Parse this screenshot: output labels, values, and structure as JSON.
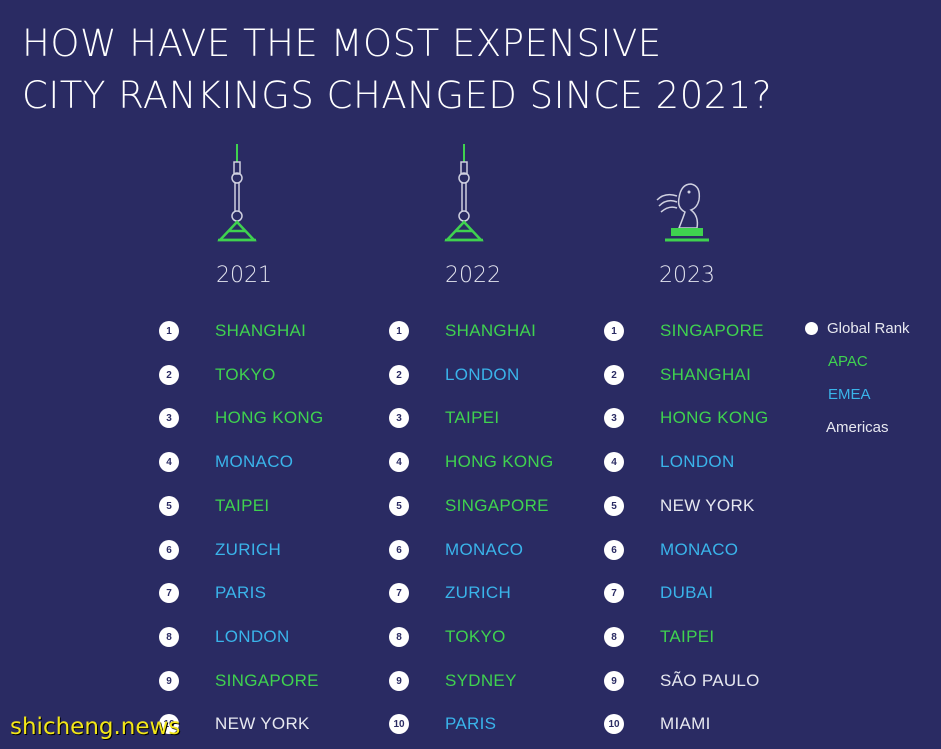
{
  "title": {
    "line1": "HOW HAVE THE MOST EXPENSIVE",
    "line2": "CITY RANKINGS CHANGED SINCE 2021?"
  },
  "columns": [
    {
      "year": "2021",
      "icon": "tower-icon",
      "cities": [
        {
          "rank": "1",
          "name": "SHANGHAI",
          "region": "apac"
        },
        {
          "rank": "2",
          "name": "TOKYO",
          "region": "apac"
        },
        {
          "rank": "3",
          "name": "HONG KONG",
          "region": "apac"
        },
        {
          "rank": "4",
          "name": "MONACO",
          "region": "emea"
        },
        {
          "rank": "5",
          "name": "TAIPEI",
          "region": "apac"
        },
        {
          "rank": "6",
          "name": "ZURICH",
          "region": "emea"
        },
        {
          "rank": "7",
          "name": "PARIS",
          "region": "emea"
        },
        {
          "rank": "8",
          "name": "LONDON",
          "region": "emea"
        },
        {
          "rank": "9",
          "name": "SINGAPORE",
          "region": "apac"
        },
        {
          "rank": "10",
          "name": "NEW YORK",
          "region": "americas"
        }
      ]
    },
    {
      "year": "2022",
      "icon": "tower-icon",
      "cities": [
        {
          "rank": "1",
          "name": "SHANGHAI",
          "region": "apac"
        },
        {
          "rank": "2",
          "name": "LONDON",
          "region": "emea"
        },
        {
          "rank": "3",
          "name": "TAIPEI",
          "region": "apac"
        },
        {
          "rank": "4",
          "name": "HONG KONG",
          "region": "apac"
        },
        {
          "rank": "5",
          "name": "SINGAPORE",
          "region": "apac"
        },
        {
          "rank": "6",
          "name": "MONACO",
          "region": "emea"
        },
        {
          "rank": "7",
          "name": "ZURICH",
          "region": "emea"
        },
        {
          "rank": "8",
          "name": "TOKYO",
          "region": "apac"
        },
        {
          "rank": "9",
          "name": "SYDNEY",
          "region": "apac"
        },
        {
          "rank": "10",
          "name": "PARIS",
          "region": "emea"
        }
      ]
    },
    {
      "year": "2023",
      "icon": "merlion-icon",
      "cities": [
        {
          "rank": "1",
          "name": "SINGAPORE",
          "region": "apac"
        },
        {
          "rank": "2",
          "name": "SHANGHAI",
          "region": "apac"
        },
        {
          "rank": "3",
          "name": "HONG KONG",
          "region": "apac"
        },
        {
          "rank": "4",
          "name": "LONDON",
          "region": "emea"
        },
        {
          "rank": "5",
          "name": "NEW YORK",
          "region": "americas"
        },
        {
          "rank": "6",
          "name": "MONACO",
          "region": "emea"
        },
        {
          "rank": "7",
          "name": "DUBAI",
          "region": "emea"
        },
        {
          "rank": "8",
          "name": "TAIPEI",
          "region": "apac"
        },
        {
          "rank": "9",
          "name": "SÃO PAULO",
          "region": "americas"
        },
        {
          "rank": "10",
          "name": "MIAMI",
          "region": "americas"
        }
      ]
    }
  ],
  "legend": {
    "global_rank": "Global Rank",
    "apac": "APAC",
    "emea": "EMEA",
    "americas": "Americas"
  },
  "colors": {
    "background": "#2a2b63",
    "apac": "#3fd24f",
    "emea": "#3ab4ea",
    "americas": "#e7e8f0"
  },
  "watermark": "shicheng.news"
}
